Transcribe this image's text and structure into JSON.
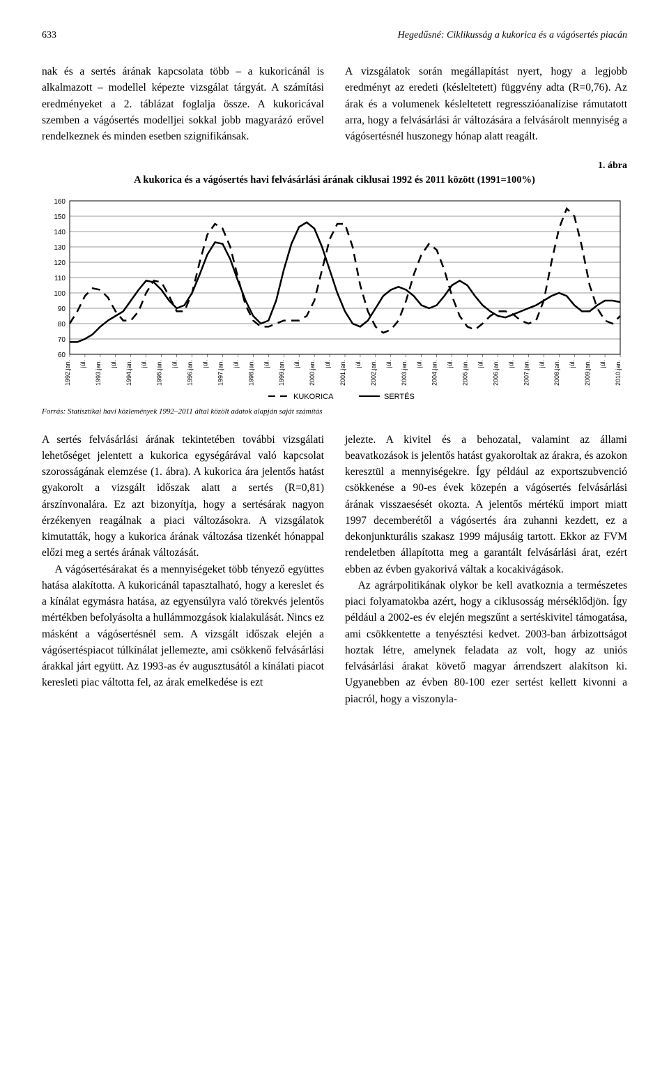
{
  "page_number": "633",
  "running_head": "Hegedűsné: Ciklikusság a kukorica és a vágósertés piacán",
  "top_left_col": "nak és a sertés árának kapcsolata több – a kukoricánál is alkalmazott – modellel képezte vizsgálat tárgyát. A számítási eredményeket a 2. táblázat foglalja össze. A kukoricával szemben a vágósertés modelljei sokkal jobb magyarázó erővel rendelkeznek és minden esetben szignifikánsak.",
  "top_right_col": "A vizsgálatok során megállapítást nyert, hogy a legjobb eredményt az eredeti (késleltetett) függvény adta (R=0,76). Az árak és a volumenek késleltetett regresszióanalízise rámutatott arra, hogy a felvásárlási ár változására a felvásárolt mennyiség a vágósertésnél huszonegy hónap alatt reagált.",
  "figure": {
    "label": "1. ábra",
    "title": "A kukorica és a vágósertés havi felvásárlási árának ciklusai 1992 és 2011 között (1991=100%)",
    "type": "line",
    "ylim": [
      60,
      160
    ],
    "ytick_step": 10,
    "yticks": [
      60,
      70,
      80,
      90,
      100,
      110,
      120,
      130,
      140,
      150,
      160
    ],
    "x_labels": [
      "1992.jan.",
      "júl.",
      "1993.jan.",
      "júl.",
      "1994.jan.",
      "júl.",
      "1995.jan.",
      "júl.",
      "1996.jan.",
      "júl.",
      "1997.jan.",
      "júl.",
      "1998.jan.",
      "júl.",
      "1999.jan.",
      "júl.",
      "2000.jan.",
      "júl.",
      "2001.jan.",
      "júl.",
      "2002.jan.",
      "júl.",
      "2003.jan.",
      "júl.",
      "2004.jan.",
      "júl.",
      "2005.jan.",
      "júl.",
      "2006.jan.",
      "júl.",
      "2007.jan.",
      "júl.",
      "2008.jan.",
      "júl.",
      "2009.jan.",
      "júl.",
      "2010.jan."
    ],
    "series": {
      "kukorica": {
        "label": "KUKORICA",
        "style": "dashed",
        "color": "#000000",
        "line_width": 2.5,
        "values": [
          80,
          88,
          98,
          103,
          102,
          97,
          88,
          82,
          82,
          88,
          100,
          108,
          107,
          98,
          88,
          88,
          100,
          120,
          138,
          145,
          142,
          130,
          110,
          92,
          82,
          78,
          78,
          80,
          82,
          82,
          82,
          85,
          95,
          115,
          135,
          145,
          145,
          130,
          105,
          88,
          78,
          74,
          76,
          82,
          95,
          112,
          125,
          132,
          128,
          115,
          98,
          85,
          78,
          76,
          80,
          85,
          88,
          88,
          86,
          82,
          80,
          82,
          95,
          120,
          142,
          155,
          150,
          130,
          105,
          90,
          82,
          80,
          85
        ]
      },
      "sertes": {
        "label": "SERTÉS",
        "style": "solid",
        "color": "#000000",
        "line_width": 2.5,
        "values": [
          68,
          68,
          70,
          73,
          78,
          82,
          85,
          88,
          95,
          102,
          108,
          107,
          102,
          95,
          90,
          92,
          100,
          112,
          125,
          133,
          132,
          122,
          108,
          95,
          85,
          80,
          82,
          95,
          115,
          132,
          143,
          146,
          142,
          130,
          115,
          100,
          88,
          80,
          78,
          82,
          90,
          98,
          102,
          104,
          102,
          98,
          92,
          90,
          92,
          98,
          105,
          108,
          105,
          98,
          92,
          88,
          85,
          84,
          86,
          88,
          90,
          92,
          95,
          98,
          100,
          98,
          92,
          88,
          88,
          92,
          95,
          95,
          94
        ]
      }
    },
    "background_color": "#ffffff",
    "grid_color": "#000000",
    "axis_fontsize": 10,
    "source": "Forrás: Statisztikai havi közlemények 1992–2011 által közölt adatok alapján saját számítás"
  },
  "bottom_left_p1": "A sertés felvásárlási árának tekintetében további vizsgálati lehetőséget jelentett a kukorica egységárával való kapcsolat szorosságának elemzése (1. ábra). A kukorica ára jelentős hatást gyakorolt a vizsgált időszak alatt a sertés (R=0,81) árszínvonalára. Ez azt bizonyítja, hogy a sertésárak nagyon érzékenyen reagálnak a piaci változásokra. A vizsgálatok kimutatták, hogy a kukorica árának változása tizenkét hónappal előzi meg a sertés árának változását.",
  "bottom_left_p2": "A vágósertésárakat és a mennyiségeket több tényező együttes hatása alakította. A kukoricánál tapasztalható, hogy a kereslet és a kínálat egymásra hatása, az egyensúlyra való törekvés jelentős mértékben befolyásolta a hullámmozgások kialakulását. Nincs ez másként a vágósertésnél sem. A vizsgált időszak elején a vágósertéspiacot túlkínálat jellemezte, ami csökkenő felvásárlási árakkal járt együtt. Az 1993-as év augusztusától a kínálati piacot keresleti piac váltotta fel, az árak emelkedése is ezt",
  "bottom_right_p1": "jelezte. A kivitel és a behozatal, valamint az állami beavatkozások is jelentős hatást gyakoroltak az árakra, és azokon keresztül a mennyiségekre. Így például az exportszubvenció csökkenése a 90-es évek közepén a vágósertés felvásárlási árának visszaesését okozta. A jelentős mértékű import miatt 1997 decemberétől a vágósertés ára zuhanni kezdett, ez a dekonjunkturális szakasz 1999 májusáig tartott. Ekkor az FVM rendeletben állapította meg a garantált felvásárlási árat, ezért ebben az évben gyakorivá váltak a kocakivágások.",
  "bottom_right_p2": "Az agrárpolitikának olykor be kell avatkoznia a természetes piaci folyamatokba azért, hogy a ciklusosság mérséklődjön. Így például a 2002-es év elején megszűnt a sertéskivitel támogatása, ami csökkentette a tenyésztési kedvet. 2003-ban árbizottságot hoztak létre, amelynek feladata az volt, hogy az uniós felvásárlási árakat követő magyar árrendszert alakítson ki. Ugyanebben az évben 80-100 ezer sertést kellett kivonni a piacról, hogy a viszonyla-"
}
